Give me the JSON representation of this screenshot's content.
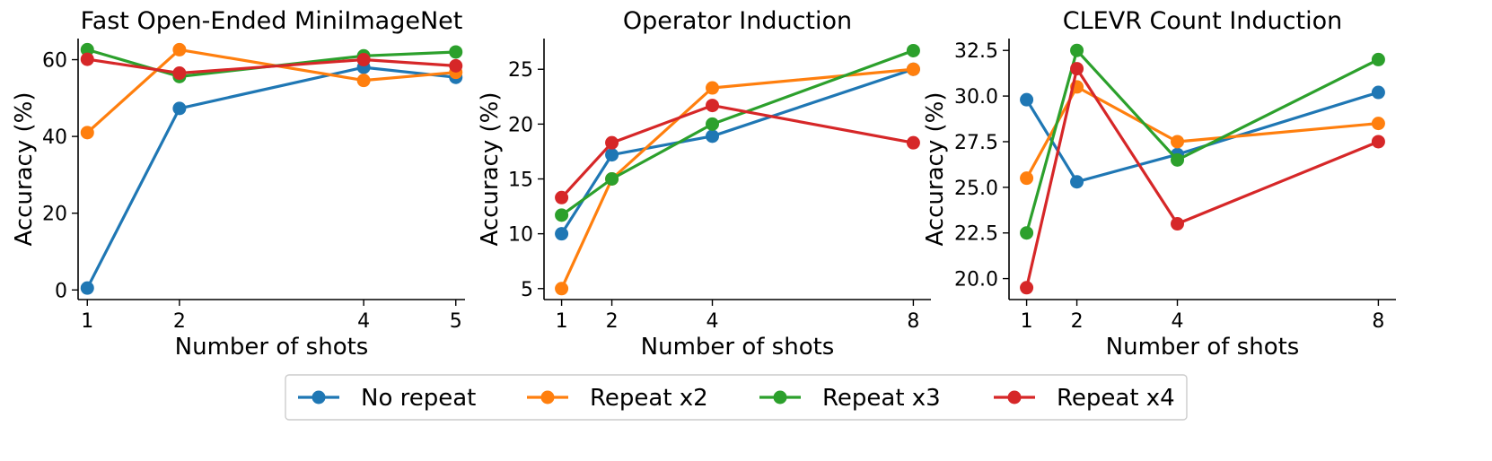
{
  "series": [
    {
      "name": "No repeat",
      "color": "#1f77b4"
    },
    {
      "name": "Repeat x2",
      "color": "#ff7f0e"
    },
    {
      "name": "Repeat x3",
      "color": "#2ca02c"
    },
    {
      "name": "Repeat x4",
      "color": "#d62728"
    }
  ],
  "legend_position": "bottom-center",
  "chart_data": [
    {
      "type": "line",
      "title": "Fast Open-Ended MiniImageNet",
      "xlabel": "Number of shots",
      "ylabel": "Accuracy (%)",
      "x": [
        1,
        2,
        4,
        5
      ],
      "xticks": [
        1,
        2,
        4,
        5
      ],
      "xlim": [
        0.9,
        5.1
      ],
      "yticks": [
        0,
        20,
        40,
        60
      ],
      "ylim": [
        -2.5,
        65.5
      ],
      "series": [
        {
          "name": "No repeat",
          "values": [
            0.5,
            47.3,
            58.0,
            55.4
          ]
        },
        {
          "name": "Repeat x2",
          "values": [
            41.0,
            62.6,
            54.6,
            56.7
          ]
        },
        {
          "name": "Repeat x3",
          "values": [
            62.6,
            55.6,
            61.0,
            62.0
          ]
        },
        {
          "name": "Repeat x4",
          "values": [
            60.1,
            56.5,
            60.0,
            58.4
          ]
        }
      ],
      "grid": false
    },
    {
      "type": "line",
      "title": "Operator Induction",
      "xlabel": "Number of shots",
      "ylabel": "Accuracy (%)",
      "x": [
        1,
        2,
        4,
        8
      ],
      "xticks": [
        1,
        2,
        4,
        8
      ],
      "xlim": [
        0.65,
        8.35
      ],
      "yticks": [
        5,
        10,
        15,
        20,
        25
      ],
      "ylim": [
        4.0,
        27.8
      ],
      "series": [
        {
          "name": "No repeat",
          "values": [
            10.0,
            17.2,
            18.9,
            25.0
          ]
        },
        {
          "name": "Repeat x2",
          "values": [
            5.0,
            15.0,
            23.3,
            25.0
          ]
        },
        {
          "name": "Repeat x3",
          "values": [
            11.7,
            15.0,
            20.0,
            26.7
          ]
        },
        {
          "name": "Repeat x4",
          "values": [
            13.3,
            18.3,
            21.7,
            18.3
          ]
        }
      ],
      "grid": false
    },
    {
      "type": "line",
      "title": "CLEVR Count Induction",
      "xlabel": "Number of shots",
      "ylabel": "Accuracy (%)",
      "x": [
        1,
        2,
        4,
        8
      ],
      "xticks": [
        1,
        2,
        4,
        8
      ],
      "xlim": [
        0.65,
        8.35
      ],
      "yticks": [
        20.0,
        22.5,
        25.0,
        27.5,
        30.0,
        32.5
      ],
      "yticklabels": [
        "20.0",
        "22.5",
        "25.0",
        "27.5",
        "30.0",
        "32.5"
      ],
      "ylim": [
        18.85,
        33.15
      ],
      "series": [
        {
          "name": "No repeat",
          "values": [
            29.8,
            25.3,
            26.8,
            30.2
          ]
        },
        {
          "name": "Repeat x2",
          "values": [
            25.5,
            30.5,
            27.5,
            28.5
          ]
        },
        {
          "name": "Repeat x3",
          "values": [
            22.5,
            32.5,
            26.5,
            32.0
          ]
        },
        {
          "name": "Repeat x4",
          "values": [
            19.5,
            31.5,
            23.0,
            27.5
          ]
        }
      ],
      "grid": false
    }
  ]
}
